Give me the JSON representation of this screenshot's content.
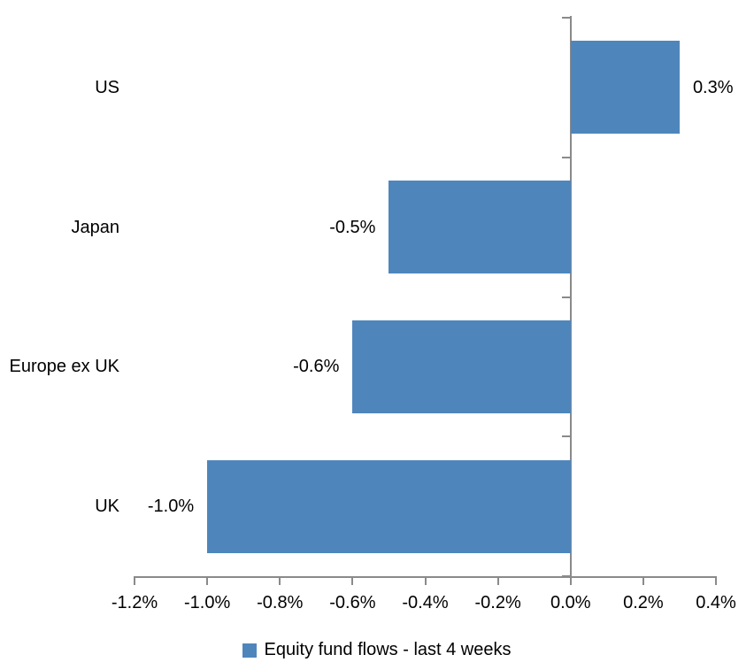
{
  "chart": {
    "legend": {
      "label": "Equity fund flows - last 4 weeks",
      "position": "bottom"
    },
    "colors": {
      "bar": "#4E86BC",
      "axis": "#8A8A8A",
      "text": "#000000",
      "background": "#FFFFFF"
    }
  },
  "chart_data": {
    "type": "bar",
    "orientation": "horizontal",
    "title": "",
    "xlabel": "",
    "ylabel": "",
    "categories": [
      "US",
      "Japan",
      "Europe ex UK",
      "UK"
    ],
    "series": [
      {
        "name": "Equity fund flows - last 4 weeks",
        "values": [
          0.3,
          -0.5,
          -0.6,
          -1.0
        ]
      }
    ],
    "data_labels": [
      "0.3%",
      "-0.5%",
      "-0.6%",
      "-1.0%"
    ],
    "x_ticks": [
      "-1.2%",
      "-1.0%",
      "-0.8%",
      "-0.6%",
      "-0.4%",
      "-0.2%",
      "0.0%",
      "0.2%",
      "0.4%"
    ],
    "x_tick_values": [
      -1.2,
      -1.0,
      -0.8,
      -0.6,
      -0.4,
      -0.2,
      0.0,
      0.2,
      0.4
    ],
    "xlim": [
      -1.2,
      0.4
    ],
    "unit": "%",
    "grid": false,
    "legend_position": "bottom"
  }
}
